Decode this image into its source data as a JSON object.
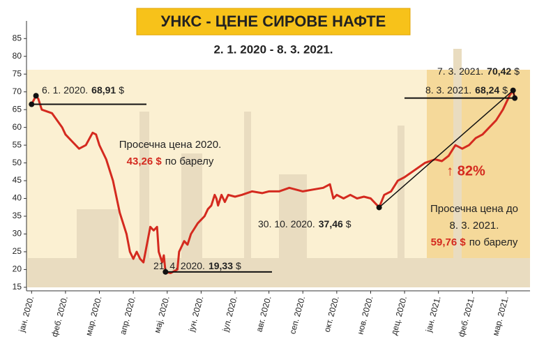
{
  "chart_data": {
    "type": "line",
    "title": "УНКС - ЦЕНЕ СИРОВЕ НАФТЕ",
    "subtitle": "2. 1. 2020 - 8. 3. 2021.",
    "color": "#d42a1f",
    "x": [
      0,
      0.13,
      0.2,
      0.3,
      0.6,
      0.9,
      1.0,
      1.2,
      1.4,
      1.6,
      1.8,
      1.9,
      2.0,
      2.2,
      2.4,
      2.6,
      2.8,
      2.9,
      3.0,
      3.1,
      3.2,
      3.3,
      3.4,
      3.5,
      3.6,
      3.7,
      3.75,
      3.85,
      3.9,
      3.95,
      4.1,
      4.3,
      4.35,
      4.5,
      4.6,
      4.7,
      4.9,
      5.0,
      5.1,
      5.2,
      5.3,
      5.4,
      5.45,
      5.5,
      5.6,
      5.7,
      5.8,
      6.0,
      6.2,
      6.5,
      6.8,
      7.0,
      7.3,
      7.6,
      8.0,
      8.3,
      8.6,
      8.8,
      8.9,
      9.0,
      9.2,
      9.4,
      9.6,
      9.8,
      10.0,
      10.2,
      10.25,
      10.4,
      10.6,
      10.8,
      11.0,
      11.3,
      11.6,
      11.9,
      12.1,
      12.3,
      12.5,
      12.7,
      12.9,
      13.1,
      13.3,
      13.5,
      13.7,
      13.9,
      14.1,
      14.2,
      14.25
    ],
    "values": [
      66.5,
      68.91,
      68,
      65,
      64,
      60,
      58,
      56,
      54,
      55,
      58.5,
      58,
      55,
      51,
      45,
      36,
      30,
      25,
      23,
      25,
      23,
      22,
      27,
      32,
      31,
      32,
      25,
      22,
      24,
      19.33,
      19,
      20,
      25,
      28,
      27,
      30,
      33,
      34,
      35,
      37,
      38,
      41,
      40,
      38,
      41,
      39,
      41,
      40.5,
      41,
      42,
      41.5,
      42,
      42,
      43,
      42,
      42.5,
      43,
      44,
      40,
      41,
      40,
      41,
      40,
      40.5,
      40,
      38,
      37.46,
      41,
      42,
      45,
      46,
      48,
      50,
      51,
      50.5,
      52,
      55,
      54,
      55,
      57,
      58,
      60,
      62,
      65,
      69,
      70.42,
      68.24
    ],
    "xlim": [
      -0.15,
      14.7
    ],
    "xticks": [
      {
        "value": 0,
        "label": "јан. 2020."
      },
      {
        "value": 1,
        "label": "феб. 2020."
      },
      {
        "value": 2,
        "label": "мар. 2020."
      },
      {
        "value": 3,
        "label": "апр. 2020."
      },
      {
        "value": 4,
        "label": "мај. 2020."
      },
      {
        "value": 5,
        "label": "јун. 2020."
      },
      {
        "value": 6,
        "label": "јул. 2020."
      },
      {
        "value": 7,
        "label": "авг. 2020."
      },
      {
        "value": 8,
        "label": "сеп. 2020."
      },
      {
        "value": 9,
        "label": "окт. 2020."
      },
      {
        "value": 10,
        "label": "нов. 2020."
      },
      {
        "value": 11,
        "label": "дец. 2020."
      },
      {
        "value": 12,
        "label": "јан. 2021."
      },
      {
        "value": 13,
        "label": "феб. 2021."
      },
      {
        "value": 14,
        "label": "мар. 2021."
      }
    ],
    "ylim": [
      14,
      88
    ],
    "yticks": [
      15,
      20,
      25,
      30,
      35,
      40,
      45,
      50,
      55,
      60,
      65,
      70,
      75,
      80,
      85
    ],
    "annotations": [
      {
        "date": "6. 1. 2020.",
        "value_label": "68,91",
        "unit": "$"
      },
      {
        "date": "21. 4. 2020.",
        "value_label": "19,33",
        "unit": "$"
      },
      {
        "date": "30. 10. 2020.",
        "value_label": "37,46",
        "unit": "$"
      },
      {
        "date": "7. 3. 2021.",
        "value_label": "70,42",
        "unit": "$"
      },
      {
        "date": "8. 3. 2021.",
        "value_label": "68,24",
        "unit": "$"
      }
    ],
    "notes": [
      {
        "lines": [
          "Просечна цена 2020."
        ],
        "value_label": "43,26 $",
        "tail": "по барелу"
      },
      {
        "lines": [
          "Просечна цена до",
          "8. 3. 2021."
        ],
        "value_label": "59,76 $",
        "tail": "по барелу"
      }
    ],
    "change_label": "↑ 82%"
  }
}
